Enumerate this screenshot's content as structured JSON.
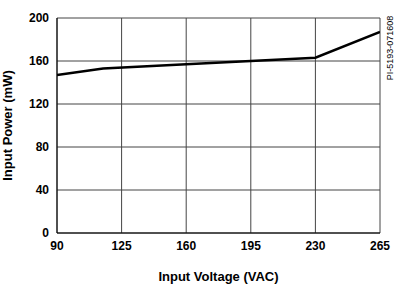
{
  "chart_data": {
    "type": "line",
    "x_label": "Input Voltage (VAC)",
    "y_label": "Input Power (mW)",
    "annotation": "PI-5193-071608",
    "x": [
      90,
      115,
      160,
      195,
      230,
      265
    ],
    "values": [
      147,
      153,
      157,
      160,
      163,
      187
    ],
    "color": "#000000",
    "xlim": [
      90,
      265
    ],
    "ylim": [
      0,
      200
    ],
    "xticks": [
      90,
      125,
      160,
      195,
      230,
      265
    ],
    "yticks": [
      0,
      40,
      80,
      120,
      160,
      200
    ],
    "grid": true
  }
}
